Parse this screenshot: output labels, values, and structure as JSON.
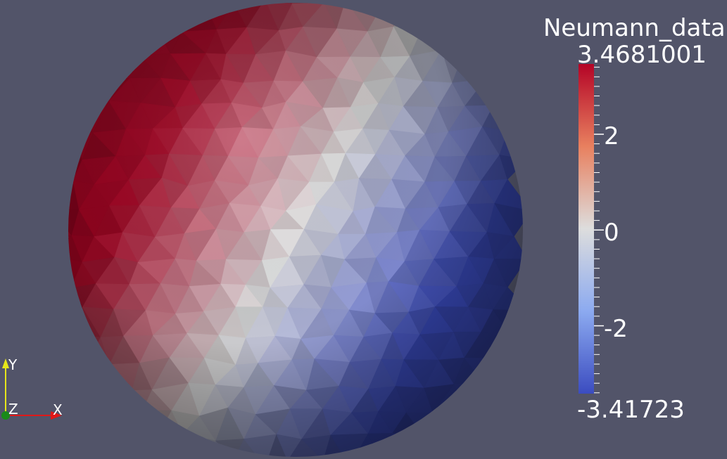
{
  "legend": {
    "title": "Neumann_data",
    "max_label": "3.4681001",
    "min_label": "-3.41723",
    "range": [
      -3.41723,
      3.4681001
    ],
    "ticks": [
      {
        "value": 2,
        "label": "2"
      },
      {
        "value": 0,
        "label": "0"
      },
      {
        "value": -2,
        "label": "-2"
      }
    ],
    "colors": {
      "low": "#3b4cc0",
      "mid": "#dddddd",
      "high": "#b40426"
    }
  },
  "axes": {
    "y_label": "Y",
    "z_label": "Z",
    "x_label": "X",
    "colors": {
      "x": "#e01818",
      "y": "#e6e61a",
      "z": "#1a8a1a"
    }
  },
  "colors": {
    "background": "#525469"
  }
}
